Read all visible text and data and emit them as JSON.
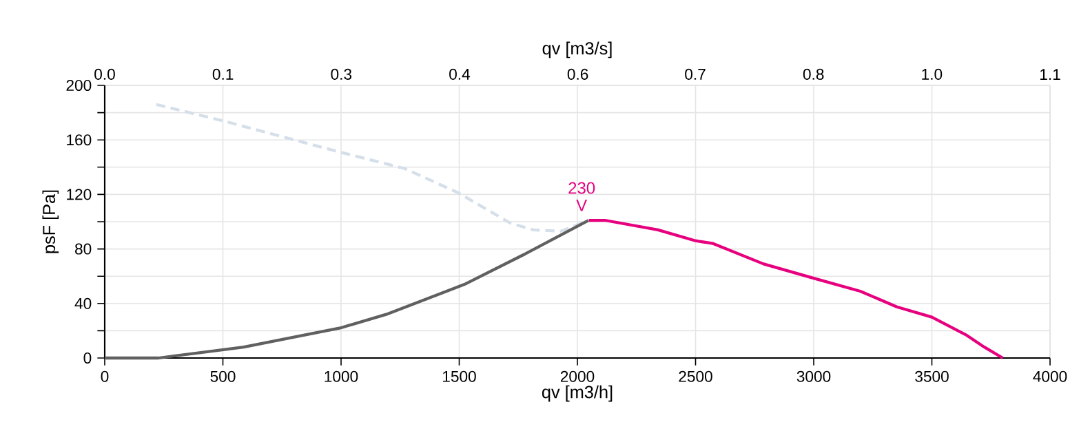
{
  "chart_data": {
    "type": "line",
    "xlabel": "qv [m3/h]",
    "ylabel": "psF [Pa]",
    "x2label": "qv [m3/s]",
    "xlim": [
      0,
      4000
    ],
    "xticks": [
      0,
      500,
      1000,
      1500,
      2000,
      2500,
      3000,
      3500,
      4000
    ],
    "ylim": [
      0,
      200
    ],
    "yticks": [
      0,
      {
        "value": 20,
        "label": null
      },
      40,
      {
        "value": 60,
        "label": null
      },
      80,
      {
        "value": 100,
        "label": null
      },
      120,
      {
        "value": 140,
        "label": null
      },
      160,
      {
        "value": 180,
        "label": null
      },
      200
    ],
    "x2lim": [
      0,
      1.111
    ],
    "x2ticks": [
      {
        "value": 0,
        "label": "0.0"
      },
      {
        "value": 0.139,
        "label": "0.1"
      },
      {
        "value": 0.278,
        "label": "0.3"
      },
      {
        "value": 0.417,
        "label": "0.4"
      },
      {
        "value": 0.556,
        "label": "0.6"
      },
      {
        "value": 0.694,
        "label": "0.7"
      },
      {
        "value": 0.833,
        "label": "0.8"
      },
      {
        "value": 0.972,
        "label": "1.0"
      },
      {
        "value": 1.111,
        "label": "1.1"
      }
    ],
    "grid": true,
    "marker": "none",
    "series": [
      {
        "color": "#d5dfe9",
        "line_style": "dashed",
        "x": [
          218,
          500,
          996,
          1269,
          1498,
          1716,
          1814,
          1930,
          2047
        ],
        "values": [
          186,
          174,
          151,
          139,
          121,
          99,
          94,
          93,
          101
        ]
      },
      {
        "color": "#606060",
        "line_style": "solid",
        "x": [
          0,
          228,
          588,
          996,
          1191,
          1424,
          1522,
          1775,
          2047
        ],
        "values": [
          0,
          0,
          8,
          22,
          32,
          47.5,
          54,
          76,
          101
        ]
      },
      {
        "name": "230 V",
        "color": "#e6007e",
        "line_style": "solid",
        "x": [
          2049,
          2117,
          2341,
          2500,
          2574,
          2788,
          3000,
          3197,
          3352,
          3500,
          3644,
          3722,
          3800
        ],
        "values": [
          101,
          101,
          94,
          86,
          84,
          69,
          58.5,
          49,
          37.5,
          30,
          17,
          8,
          0
        ]
      }
    ]
  }
}
